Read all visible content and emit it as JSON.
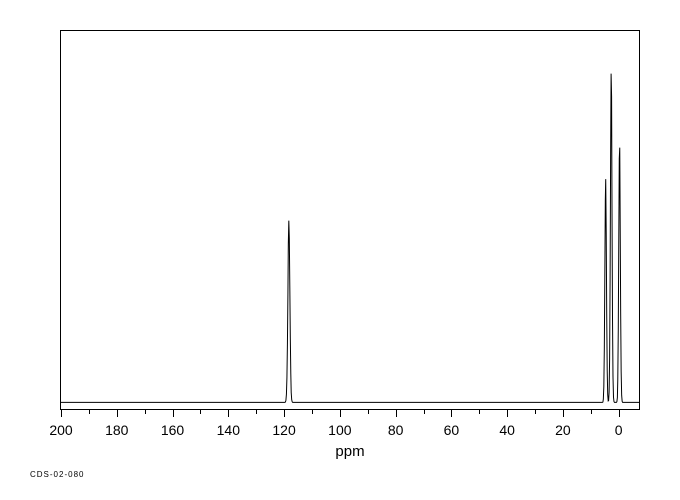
{
  "chart": {
    "type": "nmr-spectrum",
    "xlabel": "ppm",
    "xlim": [
      200,
      -8
    ],
    "ylim": [
      0,
      1.0
    ],
    "x_ticks_major": [
      200,
      180,
      160,
      140,
      120,
      100,
      80,
      60,
      40,
      20,
      0
    ],
    "x_tick_labels": [
      "200",
      "180",
      "160",
      "140",
      "120",
      "100",
      "80",
      "60",
      "40",
      "20",
      "0"
    ],
    "x_ticks_minor": [
      190,
      170,
      150,
      130,
      110,
      90,
      70,
      50,
      30,
      10
    ],
    "baseline_y": 0.02,
    "peaks": [
      {
        "ppm": 118,
        "height": 0.5,
        "width": 1.0
      },
      {
        "ppm": 4,
        "height": 0.62,
        "width": 0.8
      },
      {
        "ppm": 2,
        "height": 0.92,
        "width": 0.8
      },
      {
        "ppm": -1,
        "height": 0.72,
        "width": 0.8
      }
    ],
    "line_color": "#000000",
    "line_width": 1,
    "background_color": "#ffffff",
    "border_color": "#000000",
    "tick_label_fontsize": 14,
    "xlabel_fontsize": 15
  },
  "footer": {
    "label": "CDS-02-080",
    "fontsize": 8
  }
}
